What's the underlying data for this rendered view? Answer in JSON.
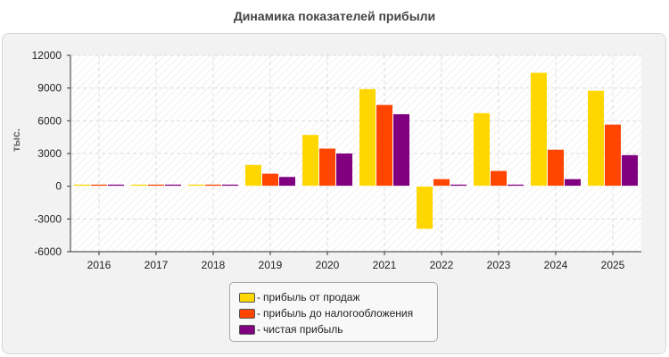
{
  "chart_data": {
    "type": "bar",
    "title": "Динамика показателей прибыли",
    "xlabel": "",
    "ylabel": "тыс.",
    "categories": [
      "2016",
      "2017",
      "2018",
      "2019",
      "2020",
      "2021",
      "2022",
      "2023",
      "2024",
      "2025"
    ],
    "series": [
      {
        "name": "прибыль от продаж",
        "color": "#ffd700",
        "values": [
          150,
          150,
          150,
          1950,
          4700,
          8900,
          -3900,
          6700,
          10400,
          8750
        ]
      },
      {
        "name": "прибыль до налогообложения",
        "color": "#ff4500",
        "values": [
          150,
          150,
          150,
          1150,
          3450,
          7450,
          650,
          1400,
          3350,
          5650
        ]
      },
      {
        "name": "чистая прибыль",
        "color": "#800080",
        "values": [
          150,
          150,
          150,
          850,
          3000,
          6600,
          150,
          150,
          650,
          2850
        ]
      }
    ],
    "ylim": [
      -6000,
      12000
    ],
    "yticks": [
      -6000,
      -3000,
      0,
      3000,
      6000,
      9000,
      12000
    ],
    "grid": true,
    "legend_position": "bottom-center"
  },
  "legend": {
    "dash": "-"
  }
}
